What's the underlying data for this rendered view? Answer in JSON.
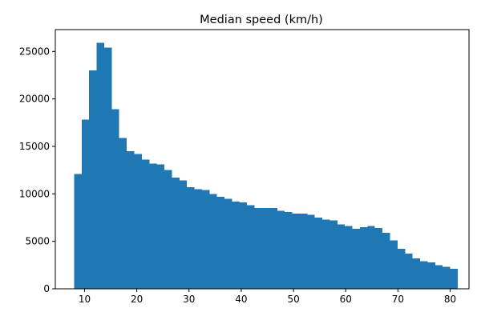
{
  "chart_data": {
    "type": "histogram",
    "title": "Median speed (km/h)",
    "xlabel": "",
    "ylabel": "",
    "bin_start": 8,
    "bin_width": 1.44,
    "counts": [
      12100,
      17800,
      23000,
      25900,
      25400,
      18900,
      15900,
      14500,
      14200,
      13600,
      13200,
      13100,
      12500,
      11700,
      11400,
      10700,
      10500,
      10400,
      10000,
      9700,
      9500,
      9200,
      9100,
      8800,
      8500,
      8500,
      8500,
      8200,
      8100,
      7900,
      7900,
      7800,
      7500,
      7300,
      7200,
      6800,
      6600,
      6300,
      6500,
      6600,
      6400,
      5900,
      5100,
      4200,
      3700,
      3200,
      2900,
      2800,
      2500,
      2300,
      2100
    ],
    "xlim": [
      4.4,
      83.6
    ],
    "ylim": [
      0,
      27300
    ],
    "xticks": [
      10,
      20,
      30,
      40,
      50,
      60,
      70,
      80
    ],
    "yticks": [
      0,
      5000,
      10000,
      15000,
      20000,
      25000
    ],
    "bar_color": "#1f77b4",
    "grid": false,
    "legend": "none"
  }
}
